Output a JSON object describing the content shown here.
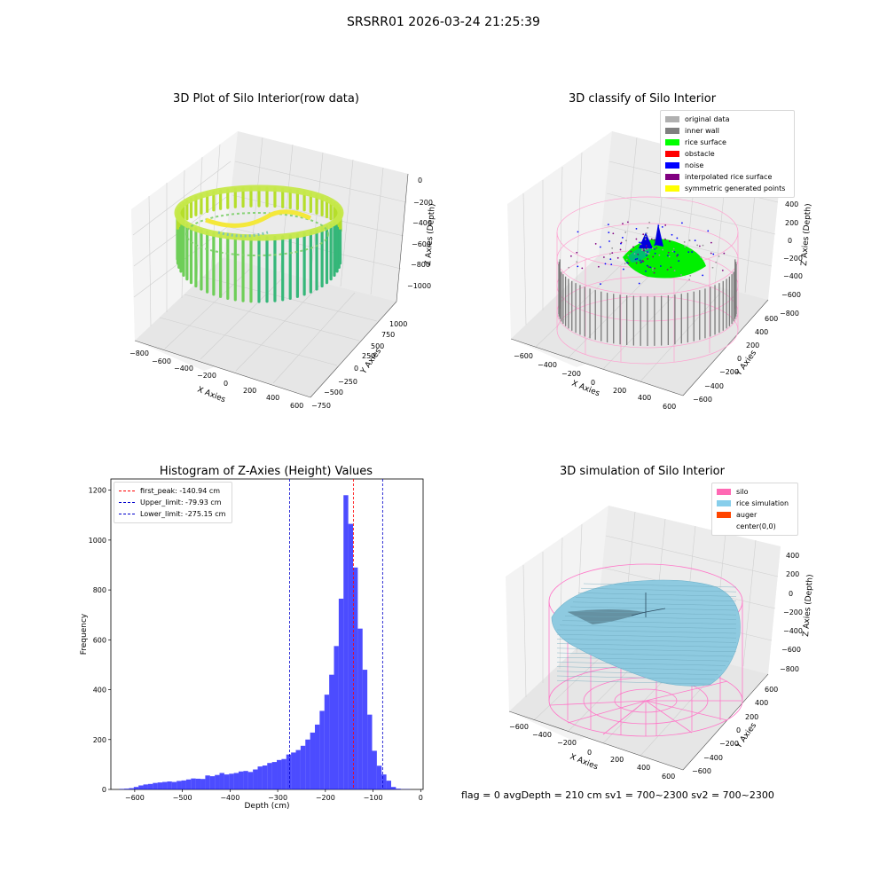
{
  "suptitle": "SRSRR01 2026-03-24 21:25:39",
  "footer": "flag = 0    avgDepth = 210 cm  sv1 = 700~2300  sv2 = 700~2300",
  "chart_data": [
    {
      "type": "scatter3d",
      "title": "3D Plot of Silo Interior(row data)",
      "xlabel": "X Axies",
      "ylabel": "Y Axies",
      "zlabel": "Z Axies (Depth)",
      "x_ticks": [
        "−800",
        "−600",
        "−400",
        "−200",
        "0",
        "200",
        "400",
        "600"
      ],
      "y_ticks": [
        "−750",
        "−500",
        "−250",
        "0",
        "250",
        "500",
        "750",
        "1000"
      ],
      "z_ticks": [
        "0",
        "−200",
        "−400",
        "−600",
        "−800",
        "−1000"
      ],
      "colormap": "viridis"
    },
    {
      "type": "scatter3d",
      "title": "3D classify of Silo Interior",
      "xlabel": "X Axies",
      "ylabel": "Y Axies",
      "zlabel": "Z Axies (Depth)",
      "x_ticks": [
        "−600",
        "−400",
        "−200",
        "0",
        "200",
        "400",
        "600"
      ],
      "y_ticks": [
        "−600",
        "−400",
        "−200",
        "0",
        "200",
        "400",
        "600"
      ],
      "z_ticks": [
        "400",
        "200",
        "0",
        "−200",
        "−400",
        "−600",
        "−800"
      ],
      "legend": [
        {
          "label": "original data",
          "color": "#b0b0b0"
        },
        {
          "label": "inner wall",
          "color": "#808080"
        },
        {
          "label": "rice surface",
          "color": "#00ff00"
        },
        {
          "label": "obstacle",
          "color": "#ff0000"
        },
        {
          "label": "noise",
          "color": "#0000ff"
        },
        {
          "label": "interpolated rice surface",
          "color": "#800080"
        },
        {
          "label": "symmetric generated points",
          "color": "#ffff00"
        }
      ]
    },
    {
      "type": "bar",
      "title": "Histogram of Z-Axies (Height) Values",
      "xlabel": "Depth (cm)",
      "ylabel": "Frequency",
      "xlim": [
        -650,
        5
      ],
      "ylim": [
        0,
        1245
      ],
      "x_ticks": [
        -600,
        -500,
        -400,
        -300,
        -200,
        -100,
        0
      ],
      "y_ticks": [
        0,
        200,
        400,
        600,
        800,
        1000,
        1200
      ],
      "bar_color": "#0000ff",
      "bar_width": 10,
      "bins": [
        -627,
        -617,
        -607,
        -597,
        -587,
        -577,
        -567,
        -557,
        -547,
        -537,
        -527,
        -517,
        -507,
        -497,
        -487,
        -477,
        -467,
        -457,
        -447,
        -437,
        -427,
        -417,
        -407,
        -397,
        -387,
        -377,
        -367,
        -357,
        -347,
        -337,
        -327,
        -317,
        -307,
        -297,
        -287,
        -277,
        -267,
        -257,
        -247,
        -237,
        -227,
        -217,
        -207,
        -197,
        -187,
        -177,
        -167,
        -157,
        -147,
        -137,
        -127,
        -117,
        -107,
        -97,
        -87,
        -77,
        -67,
        -57,
        -47,
        -37,
        -27
      ],
      "values": [
        2,
        3,
        5,
        10,
        16,
        20,
        22,
        26,
        28,
        30,
        32,
        30,
        34,
        36,
        40,
        44,
        43,
        42,
        56,
        53,
        58,
        66,
        60,
        63,
        66,
        72,
        74,
        70,
        80,
        92,
        96,
        106,
        110,
        118,
        122,
        140,
        148,
        158,
        175,
        200,
        228,
        260,
        315,
        380,
        460,
        575,
        765,
        1180,
        1065,
        890,
        645,
        480,
        300,
        155,
        95,
        60,
        35,
        10,
        3,
        1,
        1
      ],
      "vlines": [
        {
          "label": "first_peak: -140.94 cm",
          "x": -140.94,
          "color": "#ff0000"
        },
        {
          "label": "Upper_limit: -79.93 cm",
          "x": -79.93,
          "color": "#0000cc"
        },
        {
          "label": "Lower_limit: -275.15 cm",
          "x": -275.15,
          "color": "#0000cc"
        }
      ]
    },
    {
      "type": "surface3d",
      "title": "3D simulation of Silo Interior",
      "xlabel": "X Axies",
      "ylabel": "Y Axies",
      "zlabel": "Z Axies (Depth)",
      "x_ticks": [
        "−600",
        "−400",
        "−200",
        "0",
        "200",
        "400",
        "600"
      ],
      "y_ticks": [
        "−600",
        "−400",
        "−200",
        "0",
        "200",
        "400",
        "600"
      ],
      "z_ticks": [
        "400",
        "200",
        "0",
        "−200",
        "−400",
        "−600",
        "−800"
      ],
      "legend": [
        {
          "label": "silo",
          "color": "#ff69b4"
        },
        {
          "label": "rice simulation",
          "color": "#87ceeb"
        },
        {
          "label": "auger",
          "color": "#ff4500"
        },
        {
          "label": "center(0,0)",
          "color": "#ffffff"
        }
      ]
    }
  ]
}
